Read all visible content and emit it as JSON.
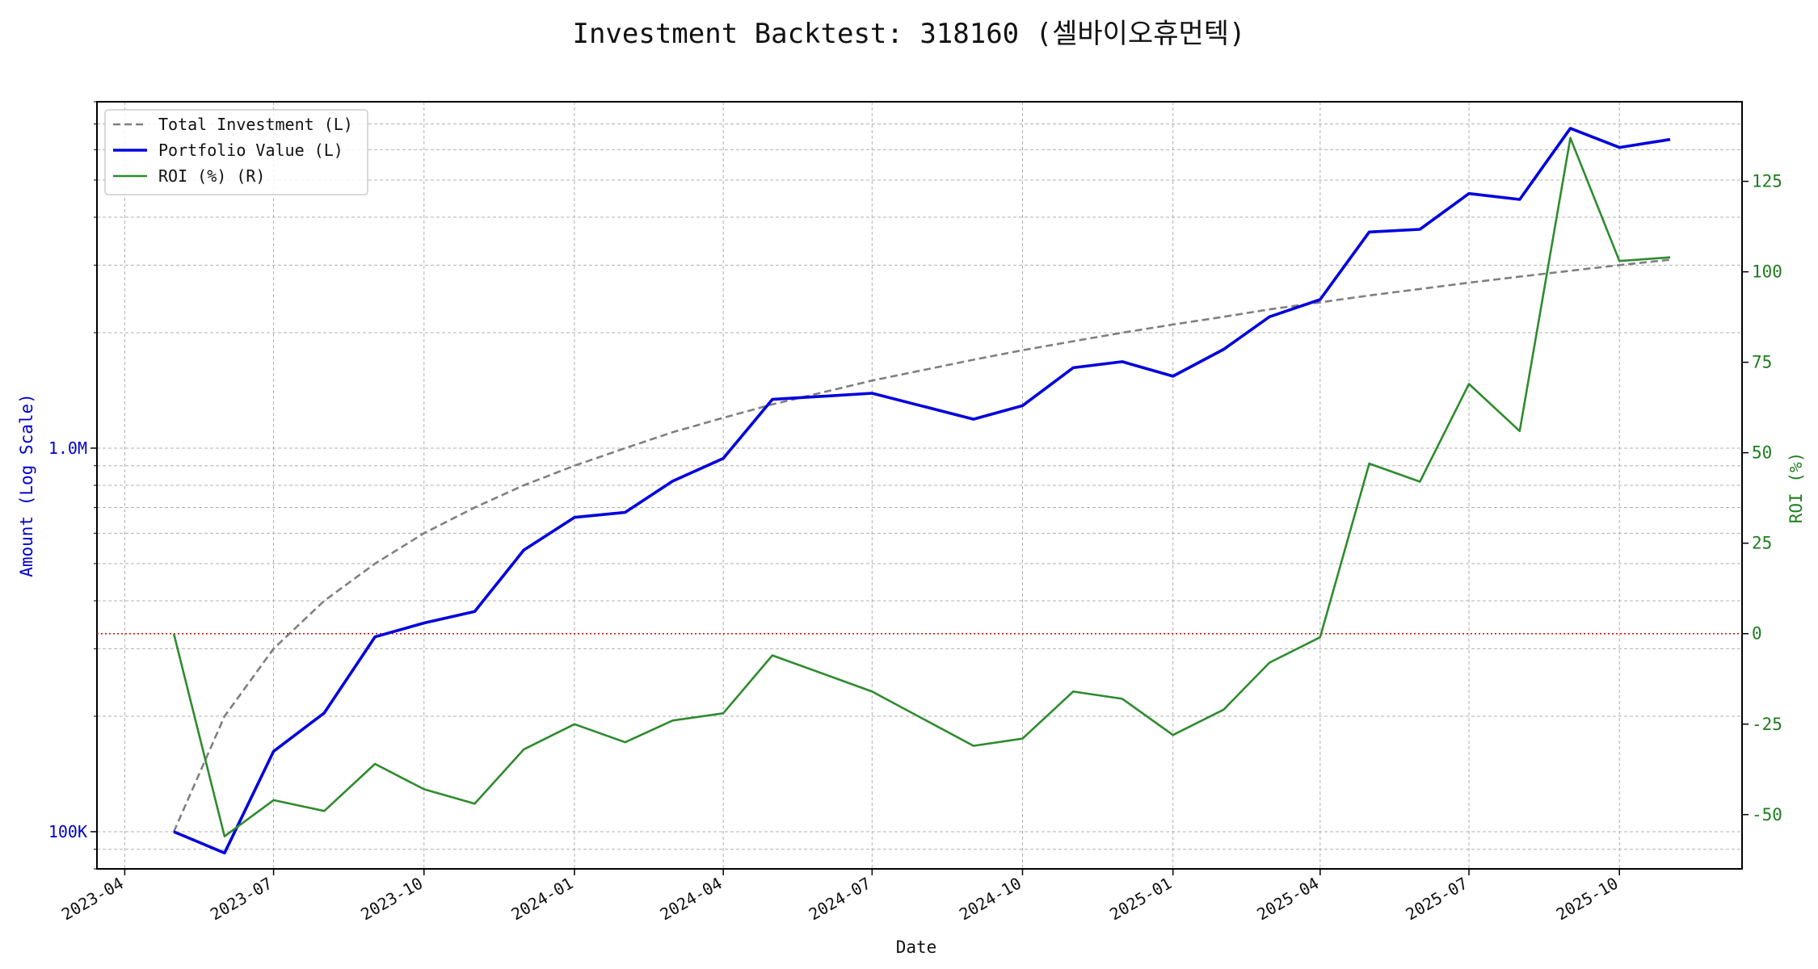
{
  "chart_data": {
    "type": "line",
    "title": "Investment Backtest: 318160 (셀바이오휴먼텍)",
    "xlabel": "Date",
    "ylabel_left": "Amount (Log Scale)",
    "ylabel_right": "ROI (%)",
    "y_left_scale": "log",
    "y_left_ticks": [
      {
        "value": 100000,
        "label": "100K"
      },
      {
        "value": 1000000,
        "label": "1.0M"
      }
    ],
    "y_left_lim": [
      80000,
      8000000
    ],
    "y_right_lim": [
      -65,
      147
    ],
    "y_right_ticks": [
      -50,
      -25,
      0,
      25,
      50,
      75,
      100,
      125
    ],
    "x_lim": [
      "2023-03-15",
      "2025-12-15"
    ],
    "x_ticks": [
      "2023-04",
      "2023-07",
      "2023-10",
      "2024-01",
      "2024-04",
      "2024-07",
      "2024-10",
      "2025-01",
      "2025-04",
      "2025-07",
      "2025-10"
    ],
    "x": [
      "2023-05-01",
      "2023-06-01",
      "2023-07-01",
      "2023-08-01",
      "2023-09-01",
      "2023-10-01",
      "2023-11-01",
      "2023-12-01",
      "2024-01-01",
      "2024-02-01",
      "2024-03-01",
      "2024-04-01",
      "2024-05-01",
      "2024-07-01",
      "2024-09-01",
      "2024-10-01",
      "2024-11-01",
      "2024-12-01",
      "2025-01-01",
      "2025-02-01",
      "2025-03-01",
      "2025-04-01",
      "2025-05-01",
      "2025-06-01",
      "2025-07-01",
      "2025-08-01",
      "2025-09-01",
      "2025-10-01",
      "2025-11-01"
    ],
    "series": [
      {
        "name": "Total Investment (L)",
        "axis": "left",
        "style": "dashed",
        "color": "#808080",
        "values": [
          100000,
          200000,
          300000,
          400000,
          500000,
          600000,
          700000,
          800000,
          900000,
          1000000,
          1100000,
          1200000,
          1300000,
          1500000,
          1700000,
          1800000,
          1900000,
          2000000,
          2100000,
          2200000,
          2300000,
          2400000,
          2500000,
          2600000,
          2700000,
          2800000,
          2900000,
          3000000,
          3100000
        ]
      },
      {
        "name": "Portfolio Value (L)",
        "axis": "left",
        "style": "solid",
        "color": "#0000dd",
        "values": [
          100000,
          88000,
          162000,
          204000,
          322000,
          350000,
          375000,
          542000,
          660000,
          680000,
          820000,
          940000,
          1340000,
          1390000,
          1190000,
          1290000,
          1620000,
          1680000,
          1540000,
          1810000,
          2200000,
          2440000,
          3660000,
          3720000,
          4610000,
          4450000,
          6820000,
          6080000,
          6380000
        ]
      },
      {
        "name": "ROI (%) (R)",
        "axis": "right",
        "style": "solid",
        "color": "#2e8b2e",
        "values": [
          0,
          -56,
          -46,
          -49,
          -36,
          -43,
          -47,
          -32,
          -25,
          -30,
          -24,
          -22,
          -6,
          -16,
          -31,
          -29,
          -16,
          -18,
          -28,
          -21,
          -8,
          -1,
          47,
          42,
          69,
          56,
          137,
          103,
          104
        ]
      }
    ],
    "reference_line": {
      "axis": "right",
      "value": 0,
      "color": "#e00000",
      "style": "dotted"
    },
    "legend": {
      "placement": "top-left"
    },
    "grid": true
  }
}
